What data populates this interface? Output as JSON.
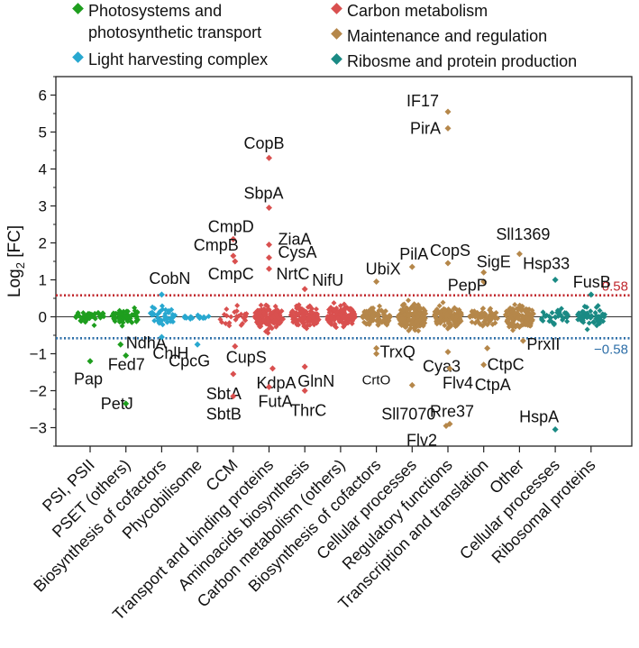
{
  "chart_data": {
    "type": "scatter",
    "ylabel_main": "Log",
    "ylabel_sub": "2",
    "ylabel_rest": " [FC]",
    "ylim": [
      -3.5,
      6.5
    ],
    "yticks": [
      -3,
      -2,
      -1,
      0,
      1,
      2,
      3,
      4,
      5,
      6
    ],
    "thresholds": [
      {
        "value": 0.58,
        "label": "0.58",
        "color": "#c0272d"
      },
      {
        "value": -0.58,
        "label": "-0.58",
        "color": "#2e6fa8"
      }
    ],
    "legend": [
      {
        "label_lines": [
          "Photosystems and",
          "photosynthetic transport"
        ],
        "color": "#1e9e1e"
      },
      {
        "label_lines": [
          "Light harvesting complex"
        ],
        "color": "#28a8d0"
      },
      {
        "label_lines": [
          "Carbon metabolism"
        ],
        "color": "#d9504f"
      },
      {
        "label_lines": [
          "Maintenance and regulation"
        ],
        "color": "#b5874a"
      },
      {
        "label_lines": [
          "Ribosme and protein production"
        ],
        "color": "#1a8a84"
      }
    ],
    "categories": [
      {
        "name": "PSI, PSII",
        "group": 0,
        "n": 40,
        "spread": 0.32,
        "lo": -0.85,
        "hi": 0.25
      },
      {
        "name": "PSET (others)",
        "group": 0,
        "n": 65,
        "spread": 0.38,
        "lo": -0.95,
        "hi": 0.5
      },
      {
        "name": "Biosynthesis of cofactors",
        "group": 1,
        "n": 38,
        "spread": 0.45,
        "lo": -0.55,
        "hi": 0.65
      },
      {
        "name": "Phycobilisome",
        "group": 1,
        "n": 18,
        "spread": 0.1,
        "lo": -0.15,
        "hi": 0.15
      },
      {
        "name": "CCM",
        "group": 2,
        "n": 24,
        "spread": 0.45,
        "lo": -0.7,
        "hi": 0.55
      },
      {
        "name": "Transport and binding proteins",
        "group": 2,
        "n": 140,
        "spread": 0.55,
        "lo": -1.2,
        "hi": 1.0
      },
      {
        "name": "Aminoacids biosynthesis",
        "group": 2,
        "n": 110,
        "spread": 0.5,
        "lo": -1.1,
        "hi": 0.8
      },
      {
        "name": "Carbon metabolism (others)",
        "group": 2,
        "n": 150,
        "spread": 0.5,
        "lo": -1.0,
        "hi": 0.75
      },
      {
        "name": "Biosynthesis of cofactors",
        "group": 3,
        "n": 95,
        "spread": 0.45,
        "lo": -0.85,
        "hi": 0.75
      },
      {
        "name": "Cellular processes",
        "group": 3,
        "n": 150,
        "spread": 0.55,
        "lo": -1.2,
        "hi": 1.1
      },
      {
        "name": "Regulatory functions",
        "group": 3,
        "n": 120,
        "spread": 0.5,
        "lo": -1.0,
        "hi": 0.9
      },
      {
        "name": "Transcription and translation",
        "group": 3,
        "n": 65,
        "spread": 0.45,
        "lo": -0.85,
        "hi": 0.65
      },
      {
        "name": "Other",
        "group": 3,
        "n": 140,
        "spread": 0.55,
        "lo": -1.0,
        "hi": 0.8
      },
      {
        "name": "Cellular processes",
        "group": 4,
        "n": 35,
        "spread": 0.4,
        "lo": -0.6,
        "hi": 0.45
      },
      {
        "name": "Ribosomal proteins",
        "group": 4,
        "n": 60,
        "spread": 0.45,
        "lo": -0.6,
        "hi": 0.45
      }
    ],
    "labeled_points": [
      {
        "gene": "NdhA",
        "cat": 1,
        "y": -0.75,
        "dx": -0.15
      },
      {
        "gene": "Pap",
        "cat": 0,
        "y": -1.2,
        "dx": 0.0
      },
      {
        "gene": "Fed7",
        "cat": 1,
        "y": -1.05,
        "dx": 0.0
      },
      {
        "gene": "PetJ",
        "cat": 1,
        "y": -2.35,
        "dx": 0.0
      },
      {
        "gene": "CobN",
        "cat": 2,
        "y": 0.6,
        "dx": 0.0
      },
      {
        "gene": "ChlH",
        "cat": 2,
        "y": -0.55,
        "dx": 0.0
      },
      {
        "gene": "CpcG",
        "cat": 3,
        "y": -0.75,
        "dx": 0.0
      },
      {
        "gene": "CmpD",
        "cat": 4,
        "y": 2.1,
        "dx": 0.0
      },
      {
        "gene": "CmpB",
        "cat": 4,
        "y": 1.65,
        "dx": 0.0
      },
      {
        "gene": "CmpC",
        "cat": 4,
        "y": 1.5,
        "dx": 0.05
      },
      {
        "gene": "CupS",
        "cat": 4,
        "y": -0.8,
        "dx": 0.05
      },
      {
        "gene": "SbtA",
        "cat": 4,
        "y": -1.55,
        "dx": 0.0
      },
      {
        "gene": "SbtB",
        "cat": 4,
        "y": -2.15,
        "dx": 0.0
      },
      {
        "gene": "CopB",
        "cat": 5,
        "y": 4.3,
        "dx": 0.0
      },
      {
        "gene": "SbpA",
        "cat": 5,
        "y": 2.95,
        "dx": 0.0
      },
      {
        "gene": "ZiaA",
        "cat": 5,
        "y": 1.95,
        "dx": 0.0
      },
      {
        "gene": "CysA",
        "cat": 5,
        "y": 1.6,
        "dx": 0.0
      },
      {
        "gene": "NrtC",
        "cat": 5,
        "y": 1.3,
        "dx": 0.0
      },
      {
        "gene": "KdpA",
        "cat": 5,
        "y": -1.4,
        "dx": 0.1
      },
      {
        "gene": "FutA",
        "cat": 5,
        "y": -1.9,
        "dx": 0.0
      },
      {
        "gene": "NifU",
        "cat": 6,
        "y": 0.75,
        "dx": 0.0
      },
      {
        "gene": "GlnN",
        "cat": 6,
        "y": -1.35,
        "dx": 0.0
      },
      {
        "gene": "ThrC",
        "cat": 6,
        "y": -2.0,
        "dx": 0.0
      },
      {
        "gene": "UbiX",
        "cat": 8,
        "y": 0.95,
        "dx": 0.0
      },
      {
        "gene": "TrxQ",
        "cat": 8,
        "y": -0.85,
        "dx": 0.0
      },
      {
        "gene": "CrtO",
        "cat": 8,
        "y": -1.0,
        "dx": 0.0
      },
      {
        "gene": "PilA",
        "cat": 9,
        "y": 1.35,
        "dx": 0.0
      },
      {
        "gene": "Sll7070",
        "cat": 9,
        "y": -1.85,
        "dx": 0.0
      },
      {
        "gene": "IF17",
        "cat": 10,
        "y": 5.55,
        "dx": 0.0
      },
      {
        "gene": "PirA",
        "cat": 10,
        "y": 5.1,
        "dx": 0.0
      },
      {
        "gene": "CopS",
        "cat": 10,
        "y": 1.45,
        "dx": 0.0
      },
      {
        "gene": "Cya3",
        "cat": 10,
        "y": -0.95,
        "dx": 0.0
      },
      {
        "gene": "Flv4",
        "cat": 10,
        "y": -1.4,
        "dx": 0.05
      },
      {
        "gene": "Rre37",
        "cat": 10,
        "y": -2.9,
        "dx": 0.05
      },
      {
        "gene": "Flv2",
        "cat": 10,
        "y": -2.95,
        "dx": -0.05
      },
      {
        "gene": "PepP",
        "cat": 11,
        "y": 0.95,
        "dx": 0.0
      },
      {
        "gene": "SigE",
        "cat": 11,
        "y": 1.2,
        "dx": 0.0
      },
      {
        "gene": "CtpC",
        "cat": 11,
        "y": -0.85,
        "dx": 0.1
      },
      {
        "gene": "CtpA",
        "cat": 11,
        "y": -1.3,
        "dx": 0.0
      },
      {
        "gene": "Sll1369",
        "cat": 12,
        "y": 1.7,
        "dx": 0.0
      },
      {
        "gene": "PrxII",
        "cat": 12,
        "y": -0.65,
        "dx": 0.1
      },
      {
        "gene": "Hsp33",
        "cat": 13,
        "y": 1.0,
        "dx": 0.0
      },
      {
        "gene": "HspA",
        "cat": 13,
        "y": -3.05,
        "dx": 0.0
      },
      {
        "gene": "FusB",
        "cat": 14,
        "y": 0.6,
        "dx": 0.0
      }
    ]
  }
}
